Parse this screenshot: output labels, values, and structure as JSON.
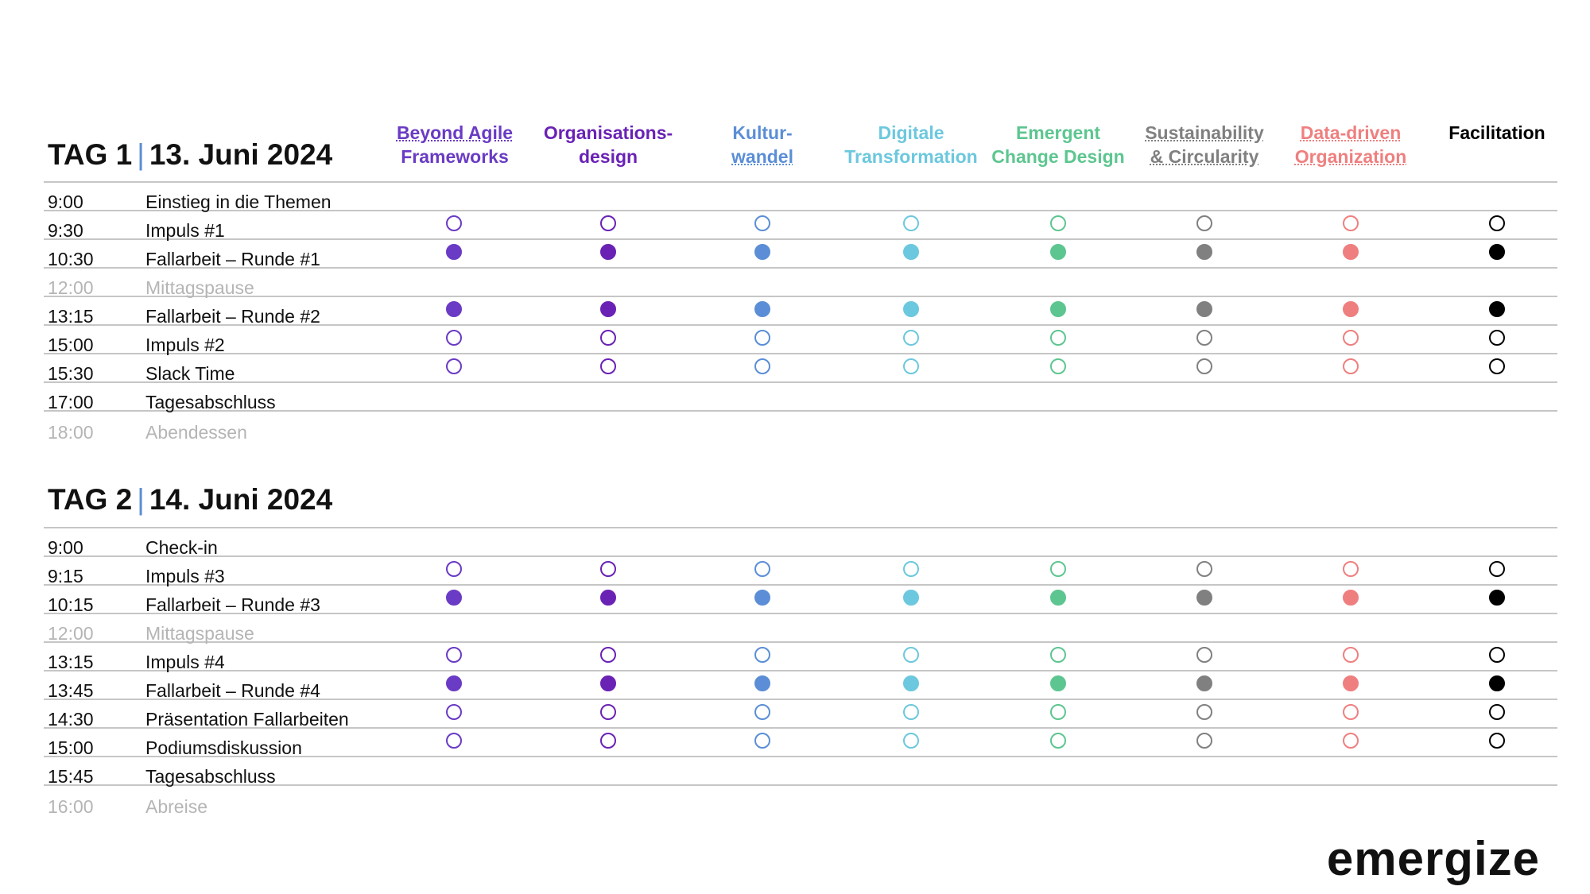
{
  "tracks": [
    {
      "line1": "Beyond Agile",
      "line2": "Frameworks",
      "color": "#6a3bc4"
    },
    {
      "line1": "Organisations-",
      "line2": "design",
      "color": "#6a22b5"
    },
    {
      "line1": "Kultur-",
      "line2": "wandel",
      "color": "#5b8ed6"
    },
    {
      "line1": "Digitale",
      "line2": "Transformation",
      "color": "#6cc8de"
    },
    {
      "line1": "Emergent",
      "line2": "Change Design",
      "color": "#5dc690"
    },
    {
      "line1": "Sustainability",
      "line2": "& Circularity",
      "color": "#808080"
    },
    {
      "line1": "Data-driven",
      "line2": "Organization",
      "color": "#ef7f7f"
    },
    {
      "line1": "",
      "line2": "Facilitation",
      "color": "#000000"
    }
  ],
  "day1": {
    "title": "TAG 1",
    "separator": "|",
    "date": "13. Juni 2024",
    "rows": [
      {
        "time": "9:00",
        "label": "Einstieg in die Themen",
        "kind": "plain"
      },
      {
        "time": "9:30",
        "label": "Impuls #1",
        "kind": "open"
      },
      {
        "time": "10:30",
        "label": "Fallarbeit – Runde #1",
        "kind": "filled"
      },
      {
        "time": "12:00",
        "label": "Mittagspause",
        "kind": "pause"
      },
      {
        "time": "13:15",
        "label": "Fallarbeit – Runde #2",
        "kind": "filled"
      },
      {
        "time": "15:00",
        "label": "Impuls #2",
        "kind": "open"
      },
      {
        "time": "15:30",
        "label": "Slack Time",
        "kind": "open"
      },
      {
        "time": "17:00",
        "label": "Tagesabschluss",
        "kind": "plain"
      },
      {
        "time": "18:00",
        "label": "Abendessen",
        "kind": "pause"
      }
    ]
  },
  "day2": {
    "title": "TAG 2",
    "separator": "|",
    "date": "14. Juni 2024",
    "rows": [
      {
        "time": "9:00",
        "label": "Check-in",
        "kind": "plain"
      },
      {
        "time": "9:15",
        "label": "Impuls #3",
        "kind": "open"
      },
      {
        "time": "10:15",
        "label": "Fallarbeit – Runde #3",
        "kind": "filled"
      },
      {
        "time": "12:00",
        "label": "Mittagspause",
        "kind": "pause"
      },
      {
        "time": "13:15",
        "label": "Impuls #4",
        "kind": "open"
      },
      {
        "time": "13:45",
        "label": "Fallarbeit – Runde #4",
        "kind": "filled"
      },
      {
        "time": "14:30",
        "label": "Präsentation Fallarbeiten",
        "kind": "open"
      },
      {
        "time": "15:00",
        "label": "Podiumsdiskussion",
        "kind": "open"
      },
      {
        "time": "15:45",
        "label": "Tagesabschluss",
        "kind": "plain"
      },
      {
        "time": "16:00",
        "label": "Abreise",
        "kind": "pause"
      }
    ]
  },
  "brand": {
    "logo": "emergize"
  }
}
